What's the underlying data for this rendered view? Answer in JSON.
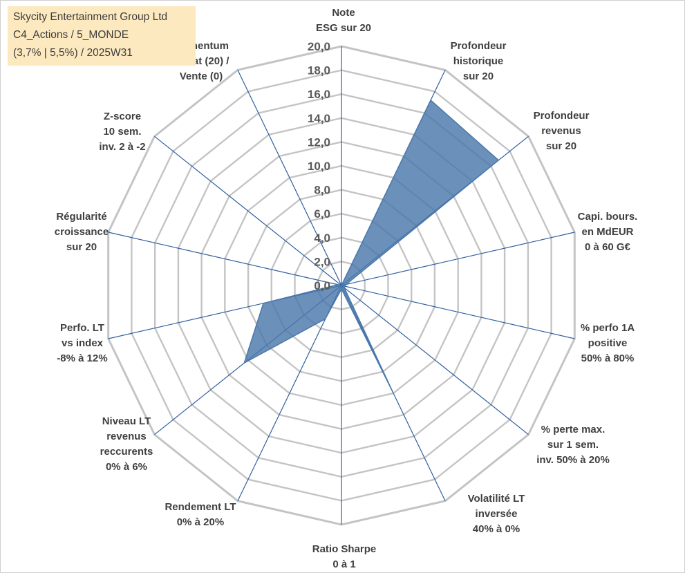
{
  "title_box": {
    "line1": "Skycity Entertainment Group Ltd",
    "line2": "C4_Actions / 5_MONDE",
    "line3": "(3,7% | 5,5%) / 2025W31"
  },
  "chart_data": {
    "type": "radar",
    "title": "",
    "rmax": 20,
    "tick_values": [
      0,
      2,
      4,
      6,
      8,
      10,
      12,
      14,
      16,
      18,
      20
    ],
    "tick_labels": [
      "0,0",
      "2,0",
      "4,0",
      "6,0",
      "8,0",
      "10,0",
      "12,0",
      "14,0",
      "16,0",
      "18,0",
      "20,0"
    ],
    "axes": [
      {
        "label": [
          "Note",
          "ESG sur 20"
        ],
        "value": 0
      },
      {
        "label": [
          "Profondeur",
          "historique",
          "sur 20"
        ],
        "value": 17.2
      },
      {
        "label": [
          "Profondeur",
          "revenus",
          "sur 20"
        ],
        "value": 16.8
      },
      {
        "label": [
          "Capi. bours.",
          "en MdEUR",
          "0 à 60 G€"
        ],
        "value": 0.4
      },
      {
        "label": [
          "% perfo 1A",
          "positive",
          "50% à 80%"
        ],
        "value": 0.3
      },
      {
        "label": [
          "% perte max.",
          "sur 1 sem.",
          "inv. 50% à 20%"
        ],
        "value": 0.3
      },
      {
        "label": [
          "Volatilité LT",
          "inversée",
          "40% à 0%"
        ],
        "value": 10.0
      },
      {
        "label": [
          "Ratio Sharpe",
          "0 à 1"
        ],
        "value": 0.3
      },
      {
        "label": [
          "Rendement LT",
          "0% à 20%"
        ],
        "value": 3.1
      },
      {
        "label": [
          "Niveau LT",
          "revenus",
          "reccurents",
          "0% à 6%"
        ],
        "value": 10.4
      },
      {
        "label": [
          "Perfo. LT",
          "vs index",
          "-8% à 12%"
        ],
        "value": 6.7
      },
      {
        "label": [
          "Régularité",
          "croissance",
          "sur 20"
        ],
        "value": 0.3
      },
      {
        "label": [
          "Z-score",
          "10 sem.",
          "inv. 2 à -2"
        ],
        "value": 0
      },
      {
        "label": [
          "Momentum",
          "Achat (20) /",
          "Vente (0)"
        ],
        "value": 0
      }
    ],
    "colors": {
      "fill": "#4a78ab",
      "grid": "#c4c4c4",
      "spoke": "#2e5f9e"
    },
    "grid": true,
    "legend": "none"
  }
}
